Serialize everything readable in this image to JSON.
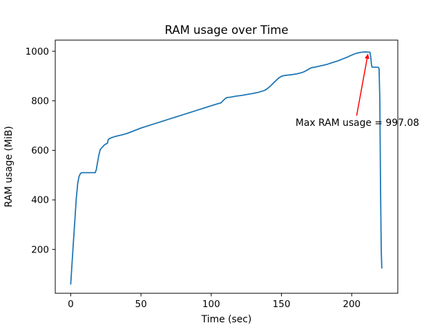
{
  "figure": {
    "background": "#ffffff"
  },
  "chart_data": {
    "type": "line",
    "title": "RAM usage over Time",
    "xlabel": "Time (sec)",
    "ylabel": "RAM usage (MiB)",
    "xlim": [
      -11,
      232.8
    ],
    "ylim": [
      23,
      1045
    ],
    "x_ticks": [
      0,
      50,
      100,
      150,
      200
    ],
    "y_ticks": [
      200,
      400,
      600,
      800,
      1000
    ],
    "grid": false,
    "legend": null,
    "axes_color": "#000000",
    "series": [
      {
        "name": "RAM usage",
        "color": "#1f77b4",
        "points": [
          [
            0,
            60
          ],
          [
            1,
            148
          ],
          [
            2,
            235
          ],
          [
            3,
            322
          ],
          [
            4,
            408
          ],
          [
            5,
            468
          ],
          [
            6,
            496
          ],
          [
            7,
            507
          ],
          [
            8,
            510
          ],
          [
            17.5,
            510
          ],
          [
            17.8,
            516
          ],
          [
            18.2,
            521
          ],
          [
            19,
            548
          ],
          [
            20,
            580
          ],
          [
            21,
            603
          ],
          [
            22.5,
            613
          ],
          [
            24,
            622
          ],
          [
            25.5,
            627
          ],
          [
            26.2,
            629
          ],
          [
            26.6,
            642
          ],
          [
            27.5,
            647
          ],
          [
            29,
            651
          ],
          [
            31,
            655
          ],
          [
            33,
            658
          ],
          [
            36,
            662
          ],
          [
            40,
            668
          ],
          [
            45,
            679
          ],
          [
            50,
            690
          ],
          [
            55,
            699
          ],
          [
            60,
            708
          ],
          [
            65,
            717
          ],
          [
            70,
            726
          ],
          [
            75,
            735
          ],
          [
            80,
            744
          ],
          [
            85,
            753
          ],
          [
            90,
            762
          ],
          [
            95,
            771
          ],
          [
            100,
            780
          ],
          [
            104,
            787
          ],
          [
            107,
            792
          ],
          [
            108.5,
            801
          ],
          [
            110,
            809
          ],
          [
            111,
            813
          ],
          [
            114,
            815
          ],
          [
            118,
            819
          ],
          [
            122,
            822
          ],
          [
            126,
            826
          ],
          [
            130,
            830
          ],
          [
            134,
            835
          ],
          [
            138,
            842
          ],
          [
            140,
            849
          ],
          [
            142,
            859
          ],
          [
            144,
            870
          ],
          [
            146,
            881
          ],
          [
            148,
            892
          ],
          [
            150,
            899
          ],
          [
            152,
            902
          ],
          [
            155,
            904
          ],
          [
            158,
            906
          ],
          [
            161,
            909
          ],
          [
            164,
            913
          ],
          [
            166,
            917
          ],
          [
            168,
            923
          ],
          [
            170,
            930
          ],
          [
            171.5,
            934
          ],
          [
            174,
            936
          ],
          [
            177,
            940
          ],
          [
            180,
            944
          ],
          [
            183,
            948
          ],
          [
            186,
            954
          ],
          [
            189,
            959
          ],
          [
            192,
            965
          ],
          [
            195,
            972
          ],
          [
            197,
            977
          ],
          [
            199,
            982
          ],
          [
            201,
            987
          ],
          [
            203,
            991
          ],
          [
            205,
            994
          ],
          [
            207,
            996
          ],
          [
            209,
            997
          ],
          [
            211,
            997.08
          ],
          [
            213,
            996
          ],
          [
            213.6,
            975
          ],
          [
            214,
            948
          ],
          [
            214.4,
            936
          ],
          [
            219,
            935
          ],
          [
            219.5,
            929
          ],
          [
            220,
            800
          ],
          [
            220.5,
            450
          ],
          [
            221,
            200
          ],
          [
            221.4,
            125
          ]
        ]
      }
    ],
    "annotation": {
      "label": "Max RAM usage = 997.08",
      "max_value": 997.08,
      "color": "#ff0000",
      "text_xy": [
        160,
        712
      ],
      "arrow_from": [
        203.5,
        740
      ],
      "arrow_to": [
        211.5,
        988
      ]
    }
  }
}
